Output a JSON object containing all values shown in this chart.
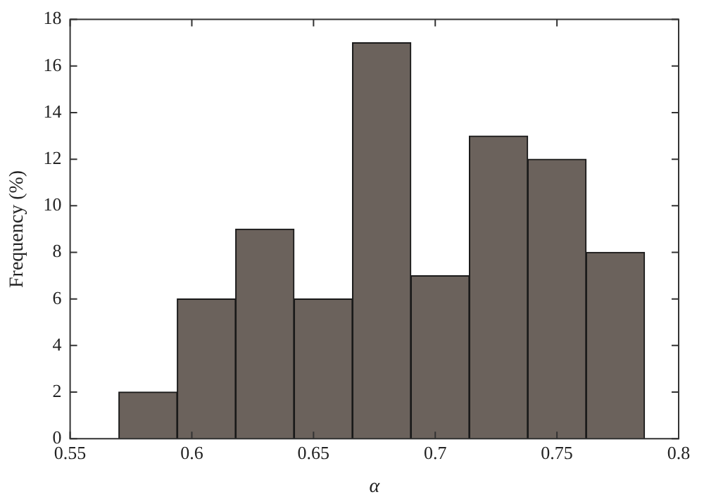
{
  "chart_data": {
    "type": "histogram",
    "xlabel": "α",
    "ylabel": "Frequency (%)",
    "bins": [
      0.57,
      0.594,
      0.618,
      0.642,
      0.666,
      0.69,
      0.714,
      0.738,
      0.762,
      0.786
    ],
    "values": [
      2,
      6,
      9,
      6,
      17,
      7,
      13,
      12,
      8
    ],
    "color": "#6b625c",
    "xlim": [
      0.55,
      0.8
    ],
    "xticks": [
      0.55,
      0.6,
      0.65,
      0.7,
      0.75,
      0.8
    ],
    "ylim": [
      0,
      18
    ],
    "yticks": [
      0,
      2,
      4,
      6,
      8,
      10,
      12,
      14,
      16,
      18
    ],
    "grid": false,
    "legend": false
  }
}
